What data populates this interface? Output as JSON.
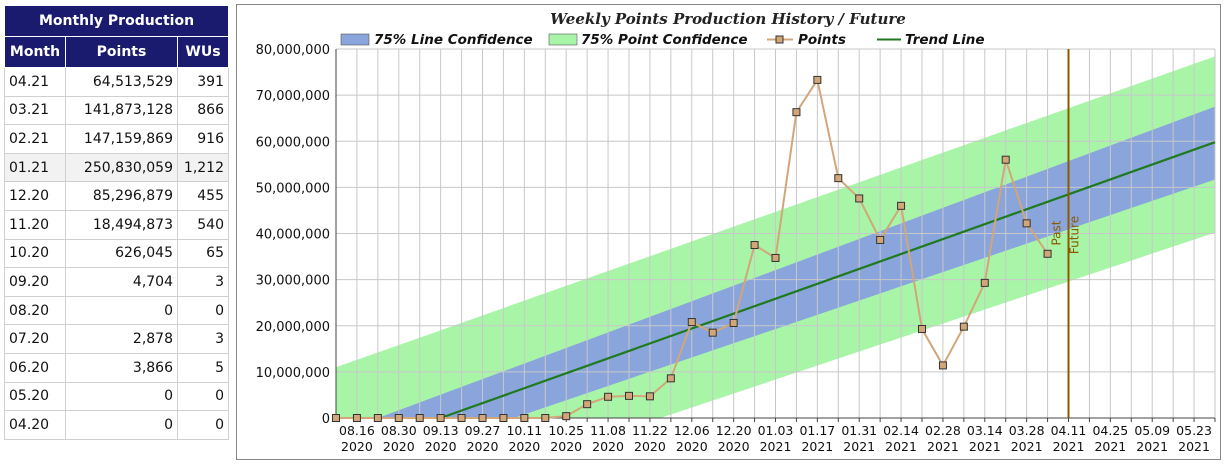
{
  "table": {
    "title": "Monthly Production",
    "headers": [
      "Month",
      "Points",
      "WUs"
    ],
    "rows": [
      {
        "month": "04.21",
        "points": "64,513,529",
        "wus": "391"
      },
      {
        "month": "03.21",
        "points": "141,873,128",
        "wus": "866"
      },
      {
        "month": "02.21",
        "points": "147,159,869",
        "wus": "916"
      },
      {
        "month": "01.21",
        "points": "250,830,059",
        "wus": "1,212"
      },
      {
        "month": "12.20",
        "points": "85,296,879",
        "wus": "455"
      },
      {
        "month": "11.20",
        "points": "18,494,873",
        "wus": "540"
      },
      {
        "month": "10.20",
        "points": "626,045",
        "wus": "65"
      },
      {
        "month": "09.20",
        "points": "4,704",
        "wus": "3"
      },
      {
        "month": "08.20",
        "points": "0",
        "wus": "0"
      },
      {
        "month": "07.20",
        "points": "2,878",
        "wus": "3"
      },
      {
        "month": "06.20",
        "points": "3,866",
        "wus": "5"
      },
      {
        "month": "05.20",
        "points": "0",
        "wus": "0"
      },
      {
        "month": "04.20",
        "points": "0",
        "wus": "0"
      }
    ]
  },
  "colors": {
    "header_bg": "#1a1a6e",
    "line_conf": "#8aa4dc",
    "point_conf": "#a8f5a8",
    "points_line": "#d2a679",
    "trend": "#1f7a1f",
    "divider": "#8b5a00"
  },
  "chart_data": {
    "type": "line",
    "title": "Weekly Points Production History / Future",
    "legend": [
      "75% Line Confidence",
      "75% Point Confidence",
      "Points",
      "Trend Line"
    ],
    "y_ticks": [
      "0",
      "10,000,000",
      "20,000,000",
      "30,000,000",
      "40,000,000",
      "50,000,000",
      "60,000,000",
      "70,000,000",
      "80,000,000"
    ],
    "ylim": [
      0,
      80000000
    ],
    "x_week_count": 42,
    "x_tick_labels": [
      {
        "week": 1,
        "top": "08.16",
        "bottom": "2020"
      },
      {
        "week": 3,
        "top": "08.30",
        "bottom": "2020"
      },
      {
        "week": 5,
        "top": "09.13",
        "bottom": "2020"
      },
      {
        "week": 7,
        "top": "09.27",
        "bottom": "2020"
      },
      {
        "week": 9,
        "top": "10.11",
        "bottom": "2020"
      },
      {
        "week": 11,
        "top": "10.25",
        "bottom": "2020"
      },
      {
        "week": 13,
        "top": "11.08",
        "bottom": "2020"
      },
      {
        "week": 15,
        "top": "11.22",
        "bottom": "2020"
      },
      {
        "week": 17,
        "top": "12.06",
        "bottom": "2020"
      },
      {
        "week": 19,
        "top": "12.20",
        "bottom": "2020"
      },
      {
        "week": 21,
        "top": "01.03",
        "bottom": "2021"
      },
      {
        "week": 23,
        "top": "01.17",
        "bottom": "2021"
      },
      {
        "week": 25,
        "top": "01.31",
        "bottom": "2021"
      },
      {
        "week": 27,
        "top": "02.14",
        "bottom": "2021"
      },
      {
        "week": 29,
        "top": "02.28",
        "bottom": "2021"
      },
      {
        "week": 31,
        "top": "03.14",
        "bottom": "2021"
      },
      {
        "week": 33,
        "top": "03.28",
        "bottom": "2021"
      },
      {
        "week": 35,
        "top": "04.11",
        "bottom": "2021"
      },
      {
        "week": 37,
        "top": "04.25",
        "bottom": "2021"
      },
      {
        "week": 39,
        "top": "05.09",
        "bottom": "2021"
      },
      {
        "week": 41,
        "top": "05.23",
        "bottom": "2021"
      }
    ],
    "points": [
      0,
      0,
      0,
      0,
      0,
      0,
      0,
      0,
      0,
      0,
      0,
      400000,
      3000000,
      4600000,
      4800000,
      4700000,
      8600000,
      20800000,
      18500000,
      20600000,
      37500000,
      34700000,
      66300000,
      73300000,
      52000000,
      47600000,
      38600000,
      46000000,
      19300000,
      11400000,
      19800000,
      29300000,
      56000000,
      42200000,
      35600000
    ],
    "trend": {
      "start_week": 5,
      "start_value": 0,
      "end_week": 42,
      "end_value": 59800000
    },
    "line_confidence": {
      "upper_end": 67500000,
      "lower_end": 51700000,
      "start_upper": 0,
      "start_lower": 0,
      "start_week": 2,
      "lower_start_week": 8.5
    },
    "point_confidence": {
      "start_upper": 11000000,
      "end_upper": 78400000,
      "end_lower": 40200000,
      "lower_start_week": 15.5
    },
    "divider_week": 35,
    "divider_labels": [
      "Past",
      "Future"
    ]
  }
}
